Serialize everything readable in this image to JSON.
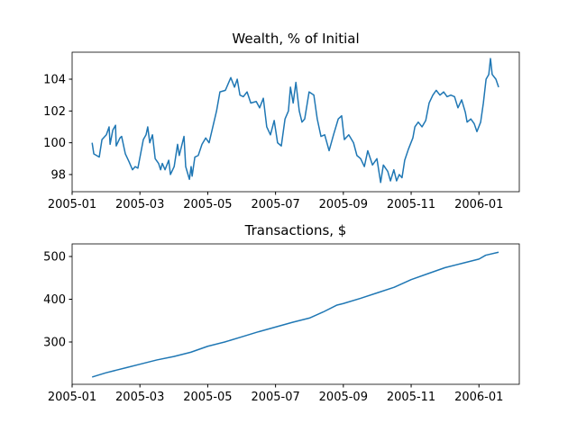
{
  "chart_data": [
    {
      "type": "line",
      "title": "Wealth, % of Initial",
      "color": "#1f77b4",
      "x": [
        0.59,
        0.64,
        0.8,
        0.88,
        1.01,
        1.09,
        1.12,
        1.2,
        1.28,
        1.3,
        1.41,
        1.46,
        1.57,
        1.68,
        1.78,
        1.86,
        1.94,
        2.02,
        2.1,
        2.18,
        2.23,
        2.29,
        2.37,
        2.45,
        2.55,
        2.61,
        2.66,
        2.74,
        2.85,
        2.9,
        3.01,
        3.11,
        3.16,
        3.3,
        3.35,
        3.46,
        3.51,
        3.54,
        3.62,
        3.72,
        3.83,
        3.94,
        4.04,
        4.15,
        4.26,
        4.36,
        4.52,
        4.68,
        4.79,
        4.87,
        4.95,
        5.05,
        5.16,
        5.27,
        5.43,
        5.53,
        5.64,
        5.74,
        5.85,
        5.96,
        6.06,
        6.17,
        6.28,
        6.38,
        6.44,
        6.52,
        6.6,
        6.7,
        6.78,
        6.86,
        6.99,
        7.13,
        7.23,
        7.34,
        7.45,
        7.58,
        7.71,
        7.85,
        7.95,
        8.03,
        8.16,
        8.3,
        8.4,
        8.51,
        8.62,
        8.72,
        8.86,
        8.99,
        9.1,
        9.18,
        9.31,
        9.39,
        9.49,
        9.57,
        9.65,
        9.73,
        9.81,
        9.92,
        10.05,
        10.11,
        10.21,
        10.32,
        10.43,
        10.53,
        10.64,
        10.74,
        10.85,
        10.96,
        11.06,
        11.17,
        11.28,
        11.38,
        11.49,
        11.6,
        11.65,
        11.76,
        11.86,
        11.94,
        12.05,
        12.13,
        12.21,
        12.29,
        12.34,
        12.39,
        12.5,
        12.58
      ],
      "values": [
        100.0,
        99.3,
        99.1,
        100.2,
        100.5,
        101.0,
        99.9,
        100.8,
        101.1,
        99.8,
        100.3,
        100.4,
        99.3,
        98.8,
        98.3,
        98.5,
        98.4,
        99.3,
        100.2,
        100.5,
        101.0,
        100.0,
        100.5,
        99.0,
        98.7,
        98.3,
        98.7,
        98.3,
        98.9,
        98.0,
        98.5,
        99.9,
        99.2,
        100.4,
        98.5,
        97.7,
        98.5,
        97.9,
        99.1,
        99.2,
        99.9,
        100.3,
        100.0,
        101.0,
        102.0,
        103.2,
        103.3,
        104.1,
        103.5,
        104.0,
        103.0,
        102.9,
        103.2,
        102.5,
        102.6,
        102.2,
        102.8,
        101.0,
        100.5,
        101.4,
        100.0,
        99.8,
        101.5,
        102.0,
        103.5,
        102.5,
        103.8,
        102.0,
        101.3,
        101.5,
        103.2,
        103.0,
        101.5,
        100.4,
        100.5,
        99.5,
        100.5,
        101.5,
        101.7,
        100.2,
        100.5,
        100.0,
        99.2,
        99.0,
        98.5,
        99.5,
        98.6,
        99.0,
        97.5,
        98.6,
        98.2,
        97.6,
        98.3,
        97.6,
        98.0,
        97.8,
        98.9,
        99.6,
        100.3,
        101.0,
        101.3,
        101.0,
        101.4,
        102.5,
        103.0,
        103.3,
        103.0,
        103.2,
        102.9,
        103.0,
        102.9,
        102.2,
        102.7,
        101.9,
        101.3,
        101.5,
        101.2,
        100.7,
        101.3,
        102.5,
        104.0,
        104.3,
        105.3,
        104.3,
        104.0,
        103.5
      ],
      "xlim": [
        0,
        13.19
      ],
      "xticks": [
        {
          "value": 0,
          "label": "2005-01"
        },
        {
          "value": 2,
          "label": "2005-03"
        },
        {
          "value": 4,
          "label": "2005-05"
        },
        {
          "value": 6,
          "label": "2005-07"
        },
        {
          "value": 8,
          "label": "2005-09"
        },
        {
          "value": 10,
          "label": "2005-11"
        },
        {
          "value": 12,
          "label": "2006-01"
        }
      ],
      "ylim": [
        96.92,
        105.7
      ],
      "yticks": [
        98,
        100,
        102,
        104
      ]
    },
    {
      "type": "line",
      "title": "Transactions, $",
      "color": "#1f77b4",
      "x": [
        0.59,
        0.75,
        1.0,
        1.3,
        1.6,
        2.0,
        2.5,
        3.0,
        3.5,
        4.0,
        4.5,
        5.0,
        5.5,
        6.0,
        6.5,
        7.0,
        7.4,
        7.8,
        8.0,
        8.5,
        9.0,
        9.5,
        10.0,
        10.5,
        11.0,
        11.5,
        12.0,
        12.2,
        12.58
      ],
      "values": [
        218,
        222,
        228,
        234,
        240,
        248,
        258,
        266,
        276,
        290,
        300,
        312,
        324,
        335,
        346,
        356,
        370,
        386,
        390,
        402,
        415,
        428,
        446,
        460,
        474,
        484,
        494,
        503,
        510
      ],
      "xlim": [
        0,
        13.19
      ],
      "xticks": [
        {
          "value": 0,
          "label": "2005-01"
        },
        {
          "value": 2,
          "label": "2005-03"
        },
        {
          "value": 4,
          "label": "2005-05"
        },
        {
          "value": 6,
          "label": "2005-07"
        },
        {
          "value": 8,
          "label": "2005-09"
        },
        {
          "value": 10,
          "label": "2005-11"
        },
        {
          "value": 12,
          "label": "2006-01"
        }
      ],
      "ylim": [
        201,
        529.5
      ],
      "yticks": [
        300,
        400,
        500
      ]
    }
  ]
}
